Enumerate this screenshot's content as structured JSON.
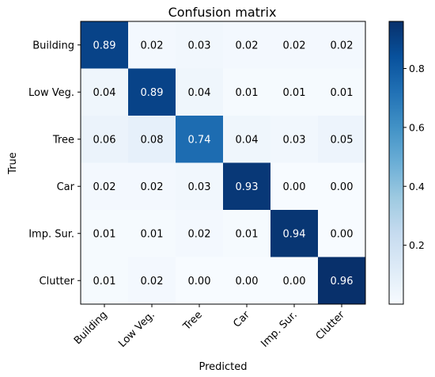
{
  "chart_data": {
    "type": "heatmap",
    "title": "Confusion matrix",
    "xlabel": "Predicted",
    "ylabel": "True",
    "x_categories": [
      "Building",
      "Low Veg.",
      "Tree",
      "Car",
      "Imp. Sur.",
      "Clutter"
    ],
    "y_categories": [
      "Building",
      "Low Veg.",
      "Tree",
      "Car",
      "Imp. Sur.",
      "Clutter"
    ],
    "values": [
      [
        0.89,
        0.02,
        0.03,
        0.02,
        0.02,
        0.02
      ],
      [
        0.04,
        0.89,
        0.04,
        0.01,
        0.01,
        0.01
      ],
      [
        0.06,
        0.08,
        0.74,
        0.04,
        0.03,
        0.05
      ],
      [
        0.02,
        0.02,
        0.03,
        0.93,
        0.0,
        0.0
      ],
      [
        0.01,
        0.01,
        0.02,
        0.01,
        0.94,
        0.0
      ],
      [
        0.01,
        0.02,
        0.0,
        0.0,
        0.0,
        0.96
      ]
    ],
    "colormap": "Blues",
    "colorbar": {
      "range": [
        0.0,
        0.96
      ],
      "ticks": [
        0.2,
        0.4,
        0.6,
        0.8
      ],
      "tick_labels": [
        "0.2",
        "0.4",
        "0.6",
        "0.8"
      ],
      "position": "right"
    },
    "text_color_light": "#ffffff",
    "text_color_dark": "#000000",
    "grid": false
  }
}
